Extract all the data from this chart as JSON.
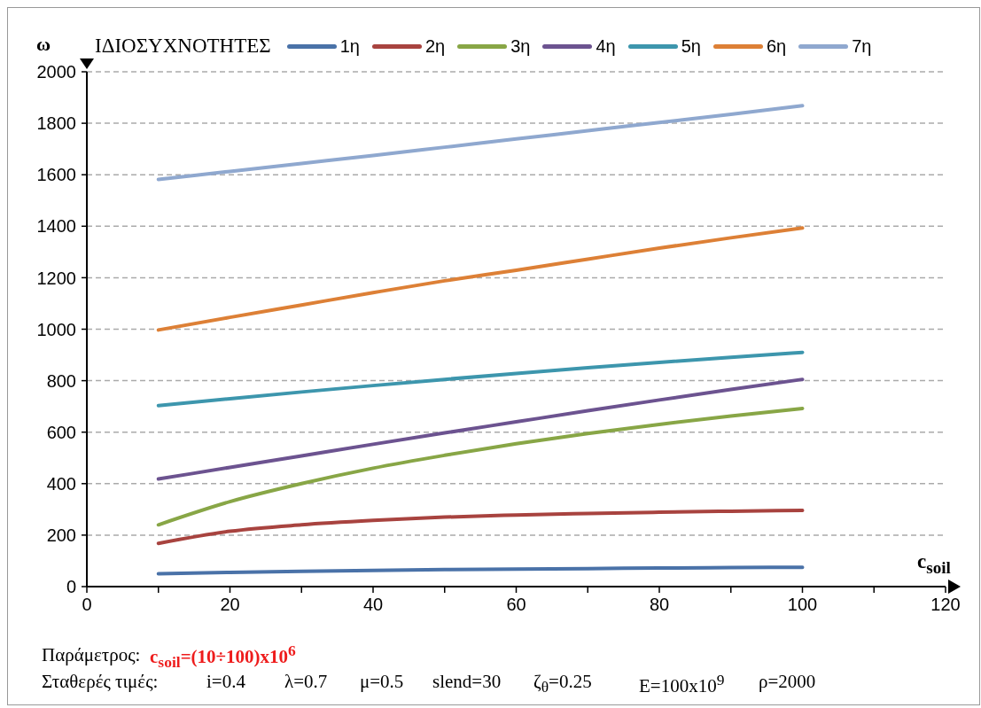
{
  "chart_data": {
    "type": "line",
    "ylabel": "ω",
    "xlabel": "c$_{soil}$",
    "legend_title": "ΙΔΙΟΣΥΧΝΟΤΗΤΕΣ",
    "x": [
      10,
      20,
      30,
      40,
      50,
      60,
      70,
      80,
      90,
      100
    ],
    "series": [
      {
        "name": "1η",
        "color": "#4a72a8",
        "values": [
          50,
          55,
          59,
          63,
          66,
          68,
          70,
          72,
          74,
          75
        ]
      },
      {
        "name": "2η",
        "color": "#a8433f",
        "values": [
          168,
          215,
          240,
          257,
          270,
          278,
          284,
          289,
          293,
          296
        ]
      },
      {
        "name": "3η",
        "color": "#88a646",
        "values": [
          240,
          330,
          400,
          460,
          510,
          555,
          595,
          630,
          663,
          692
        ]
      },
      {
        "name": "4η",
        "color": "#6c5390",
        "values": [
          418,
          463,
          508,
          553,
          597,
          640,
          683,
          725,
          766,
          805
        ]
      },
      {
        "name": "5η",
        "color": "#3d96ad",
        "values": [
          703,
          730,
          756,
          781,
          805,
          828,
          850,
          871,
          891,
          910
        ]
      },
      {
        "name": "6η",
        "color": "#dd8036",
        "values": [
          997,
          1046,
          1094,
          1142,
          1188,
          1229,
          1272,
          1315,
          1355,
          1393
        ]
      },
      {
        "name": "7η",
        "color": "#8fa8cf",
        "values": [
          1582,
          1613,
          1644,
          1675,
          1707,
          1739,
          1771,
          1803,
          1835,
          1868
        ]
      }
    ],
    "xlim": [
      0,
      120
    ],
    "xticks": [
      0,
      {
        "value": 10,
        "label": null
      },
      20,
      {
        "value": 30,
        "label": null
      },
      40,
      {
        "value": 50,
        "label": null
      },
      60,
      {
        "value": 70,
        "label": null
      },
      80,
      {
        "value": 90,
        "label": null
      },
      100,
      {
        "value": 110,
        "label": null
      },
      120
    ],
    "ylim": [
      0,
      2000
    ],
    "yticks": [
      0,
      200,
      400,
      600,
      800,
      1000,
      1200,
      1400,
      1600,
      1800,
      2000
    ],
    "grid": "y",
    "legend": "top",
    "annotations": [
      "Παράμετρος:",
      "c$_{soil}$=(10÷100)x10$^{6}$",
      "Σταθερές τιμές:",
      "i=0.4",
      "λ=0.7",
      "μ=0.5",
      "slend=30",
      "ζ$_{θ}$=0.25",
      "E=100x10$^{9}$",
      "ρ=2000"
    ]
  }
}
